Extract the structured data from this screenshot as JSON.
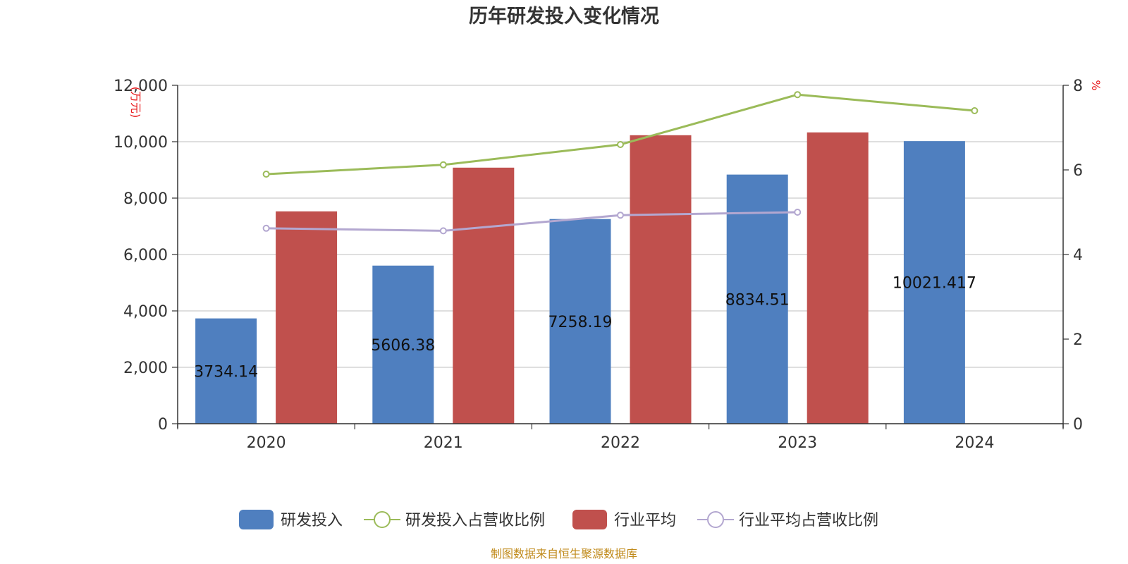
{
  "chart_data": {
    "type": "bar",
    "title": "历年研发投入变化情况",
    "categories": [
      "2020",
      "2021",
      "2022",
      "2023",
      "2024"
    ],
    "y_left": {
      "unit": "(万元)",
      "range": [
        0,
        12000
      ],
      "ticks": [
        "0",
        "2,000",
        "4,000",
        "6,000",
        "8,000",
        "10,000",
        "12,000"
      ]
    },
    "y_right": {
      "unit": "%",
      "range": [
        0,
        8
      ],
      "ticks": [
        "0",
        "2",
        "4",
        "6",
        "8"
      ]
    },
    "grid": true,
    "legend_position": "bottom",
    "series": [
      {
        "name": "研发投入",
        "kind": "bar",
        "axis": "left",
        "color": "#4f7fbf",
        "values": [
          3734.14,
          5606.38,
          7258.19,
          8834.51,
          10021.417
        ],
        "labels": [
          "3734.14",
          "5606.38",
          "7258.19",
          "8834.51",
          "10021.417"
        ]
      },
      {
        "name": "研发投入占营收比例",
        "kind": "line",
        "axis": "right",
        "color": "#9bbb59",
        "values": [
          5.9,
          6.12,
          6.6,
          7.78,
          7.4
        ]
      },
      {
        "name": "行业平均",
        "kind": "bar",
        "axis": "left",
        "color": "#c0504d",
        "values": [
          7530,
          9080,
          10230,
          10330,
          null
        ]
      },
      {
        "name": "行业平均占营收比例",
        "kind": "line",
        "axis": "right",
        "color": "#b3a7d0",
        "values": [
          4.62,
          4.56,
          4.93,
          5.0,
          null
        ]
      }
    ]
  },
  "source": "制图数据来自恒生聚源数据库"
}
